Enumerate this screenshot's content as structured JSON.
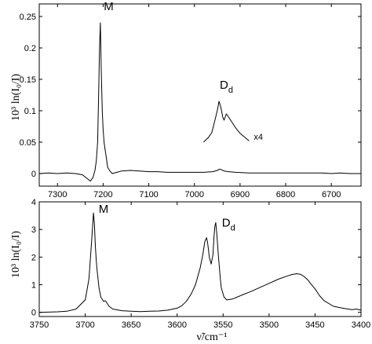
{
  "chart_data": [
    {
      "type": "line",
      "title": "",
      "ylabel": "10³ ln(I₀/I)",
      "xlabel": "",
      "xlim": [
        7340,
        6635
      ],
      "ylim": [
        -0.02,
        0.27
      ],
      "x_reversed": true,
      "xticks": [
        7300,
        7200,
        7100,
        7000,
        6900,
        6800,
        6700
      ],
      "yticks": [
        0,
        0.05,
        0.1,
        0.15,
        0.2,
        0.25
      ],
      "ytick_labels": [
        "0",
        "0.05",
        "0.1",
        "0.15",
        "0.2",
        "0.25"
      ],
      "series": [
        {
          "x": [
            7340,
            7320,
            7300,
            7280,
            7260,
            7245,
            7235,
            7228,
            7222,
            7218,
            7215,
            7212,
            7210,
            7208,
            7206,
            7204,
            7202,
            7200,
            7198,
            7196,
            7193,
            7190,
            7185,
            7180,
            7170,
            7160,
            7140,
            7120,
            7100,
            7080,
            7060,
            7040,
            7020,
            7000,
            6980,
            6960,
            6950,
            6945,
            6940,
            6935,
            6925,
            6910,
            6880,
            6850,
            6820,
            6800,
            6780,
            6750,
            6720,
            6700,
            6680,
            6660,
            6635
          ],
          "y": [
            0.0,
            0.001,
            0.0,
            0.001,
            0.0,
            -0.002,
            -0.008,
            -0.012,
            -0.006,
            0.005,
            0.02,
            0.05,
            0.12,
            0.2,
            0.24,
            0.16,
            0.1,
            0.07,
            0.05,
            0.04,
            0.025,
            0.01,
            0.004,
            0.0,
            0.002,
            0.004,
            0.005,
            0.004,
            0.003,
            0.003,
            0.002,
            0.002,
            0.002,
            0.002,
            0.002,
            0.003,
            0.005,
            0.007,
            0.006,
            0.004,
            0.003,
            0.002,
            0.001,
            0.001,
            0.001,
            0.001,
            0.001,
            0.001,
            0.001,
            0.0,
            0.001,
            0.0,
            0.0
          ]
        },
        {
          "name": "x4",
          "x": [
            6980,
            6970,
            6962,
            6955,
            6950,
            6946,
            6942,
            6938,
            6935,
            6930,
            6925,
            6918,
            6910,
            6900,
            6890,
            6880
          ],
          "y": [
            0.05,
            0.057,
            0.065,
            0.085,
            0.1,
            0.115,
            0.105,
            0.09,
            0.085,
            0.095,
            0.09,
            0.082,
            0.073,
            0.064,
            0.058,
            0.052
          ]
        }
      ],
      "annotations": [
        {
          "text": "M",
          "sub": "",
          "x": 7202,
          "y": 0.26
        },
        {
          "text": "D",
          "sub": "d",
          "x": 6948,
          "y": 0.135
        },
        {
          "text": "x4",
          "sub": "",
          "x": 6870,
          "y": 0.054
        }
      ]
    },
    {
      "type": "line",
      "title": "",
      "ylabel": "10³ ln(I₀/I)",
      "xlabel": "ν̃/cm⁻¹",
      "xlim": [
        3750,
        3400
      ],
      "ylim": [
        -0.15,
        4.0
      ],
      "x_reversed": true,
      "xticks": [
        3750,
        3700,
        3650,
        3600,
        3550,
        3500,
        3450,
        3400
      ],
      "yticks": [
        0,
        1,
        2,
        3,
        4
      ],
      "ytick_labels": [
        "0",
        "1",
        "2",
        "3",
        "4"
      ],
      "series": [
        {
          "x": [
            3750,
            3740,
            3730,
            3720,
            3710,
            3700,
            3696,
            3693,
            3691,
            3690,
            3689,
            3688,
            3687,
            3685,
            3683,
            3680,
            3678,
            3676,
            3674,
            3670,
            3660,
            3650,
            3640,
            3630,
            3620,
            3610,
            3600,
            3595,
            3590,
            3585,
            3580,
            3575,
            3572,
            3570,
            3568,
            3567,
            3566,
            3565,
            3563,
            3561,
            3560,
            3559,
            3558,
            3557,
            3555,
            3553,
            3552,
            3551,
            3549,
            3546,
            3540,
            3535,
            3530,
            3520,
            3510,
            3500,
            3490,
            3480,
            3475,
            3470,
            3466,
            3462,
            3458,
            3455,
            3450,
            3445,
            3440,
            3430,
            3420,
            3410,
            3405,
            3400
          ],
          "y": [
            0.0,
            0.01,
            0.02,
            0.04,
            0.12,
            0.45,
            1.2,
            2.6,
            3.6,
            3.2,
            2.4,
            1.9,
            1.5,
            0.9,
            0.55,
            0.4,
            0.42,
            0.32,
            0.22,
            0.12,
            0.06,
            0.04,
            0.03,
            0.04,
            0.05,
            0.08,
            0.15,
            0.24,
            0.4,
            0.65,
            1.0,
            1.6,
            2.1,
            2.55,
            2.7,
            2.55,
            2.3,
            2.0,
            1.75,
            2.1,
            2.7,
            3.1,
            3.25,
            2.9,
            2.0,
            1.2,
            0.9,
            0.78,
            0.55,
            0.45,
            0.48,
            0.55,
            0.62,
            0.75,
            0.9,
            1.05,
            1.2,
            1.32,
            1.37,
            1.4,
            1.38,
            1.3,
            1.18,
            1.05,
            0.85,
            0.6,
            0.42,
            0.22,
            0.15,
            0.1,
            0.12,
            0.08
          ]
        }
      ],
      "annotations": [
        {
          "text": "M",
          "sub": "",
          "x": 3687,
          "y": 3.6
        },
        {
          "text": "D",
          "sub": "d",
          "x": 3553,
          "y": 3.1
        }
      ]
    }
  ]
}
